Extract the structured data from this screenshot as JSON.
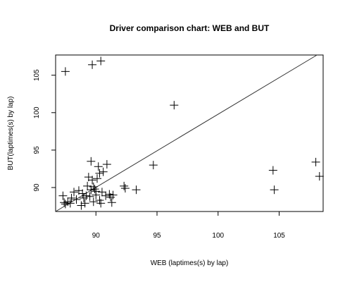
{
  "chart_data": {
    "type": "scatter",
    "title": "Driver comparison chart: WEB and BUT",
    "xlabel": "WEB (laptimes(s) by lap)",
    "ylabel": "BUT(laptimes(s) by lap)",
    "xlim": [
      86.7,
      108.6
    ],
    "ylim": [
      86.8,
      107.7
    ],
    "x_ticks": [
      90,
      95,
      100,
      105
    ],
    "y_ticks": [
      90,
      95,
      100,
      105
    ],
    "grid": false,
    "marker": "plus",
    "reference_line": {
      "x": [
        86.7,
        108.1
      ],
      "y": [
        86.8,
        107.7
      ]
    },
    "points": [
      {
        "x": 87.5,
        "y": 105.5
      },
      {
        "x": 89.7,
        "y": 106.4
      },
      {
        "x": 90.4,
        "y": 106.9
      },
      {
        "x": 96.4,
        "y": 101.0
      },
      {
        "x": 94.7,
        "y": 93.0
      },
      {
        "x": 104.5,
        "y": 92.3
      },
      {
        "x": 104.6,
        "y": 89.7
      },
      {
        "x": 108.0,
        "y": 93.4
      },
      {
        "x": 108.3,
        "y": 91.5
      },
      {
        "x": 89.6,
        "y": 93.5
      },
      {
        "x": 90.2,
        "y": 92.8
      },
      {
        "x": 90.9,
        "y": 93.1
      },
      {
        "x": 89.4,
        "y": 91.4
      },
      {
        "x": 90.3,
        "y": 91.9
      },
      {
        "x": 90.6,
        "y": 92.1
      },
      {
        "x": 89.7,
        "y": 91.0
      },
      {
        "x": 90.1,
        "y": 91.2
      },
      {
        "x": 92.3,
        "y": 90.2
      },
      {
        "x": 92.4,
        "y": 89.9
      },
      {
        "x": 93.3,
        "y": 89.7
      },
      {
        "x": 89.3,
        "y": 90.2
      },
      {
        "x": 89.8,
        "y": 90.1
      },
      {
        "x": 90.5,
        "y": 89.4
      },
      {
        "x": 91.1,
        "y": 89.1
      },
      {
        "x": 91.2,
        "y": 88.7
      },
      {
        "x": 91.4,
        "y": 89.0
      },
      {
        "x": 90.8,
        "y": 88.9
      },
      {
        "x": 88.6,
        "y": 89.6
      },
      {
        "x": 88.9,
        "y": 89.2
      },
      {
        "x": 88.2,
        "y": 89.4
      },
      {
        "x": 88.0,
        "y": 88.6
      },
      {
        "x": 88.4,
        "y": 88.4
      },
      {
        "x": 89.0,
        "y": 88.6
      },
      {
        "x": 89.5,
        "y": 88.8
      },
      {
        "x": 89.9,
        "y": 89.8
      },
      {
        "x": 90.0,
        "y": 89.5
      },
      {
        "x": 90.3,
        "y": 88.3
      },
      {
        "x": 89.1,
        "y": 87.9
      },
      {
        "x": 89.8,
        "y": 88.1
      },
      {
        "x": 90.4,
        "y": 87.9
      },
      {
        "x": 91.3,
        "y": 88.0
      },
      {
        "x": 87.3,
        "y": 88.9
      },
      {
        "x": 87.4,
        "y": 88.0
      },
      {
        "x": 87.5,
        "y": 87.8
      },
      {
        "x": 87.7,
        "y": 88.1
      },
      {
        "x": 87.9,
        "y": 87.9
      },
      {
        "x": 88.8,
        "y": 87.6
      },
      {
        "x": 89.2,
        "y": 88.9
      },
      {
        "x": 90.0,
        "y": 89.0
      },
      {
        "x": 89.6,
        "y": 89.7
      }
    ]
  }
}
